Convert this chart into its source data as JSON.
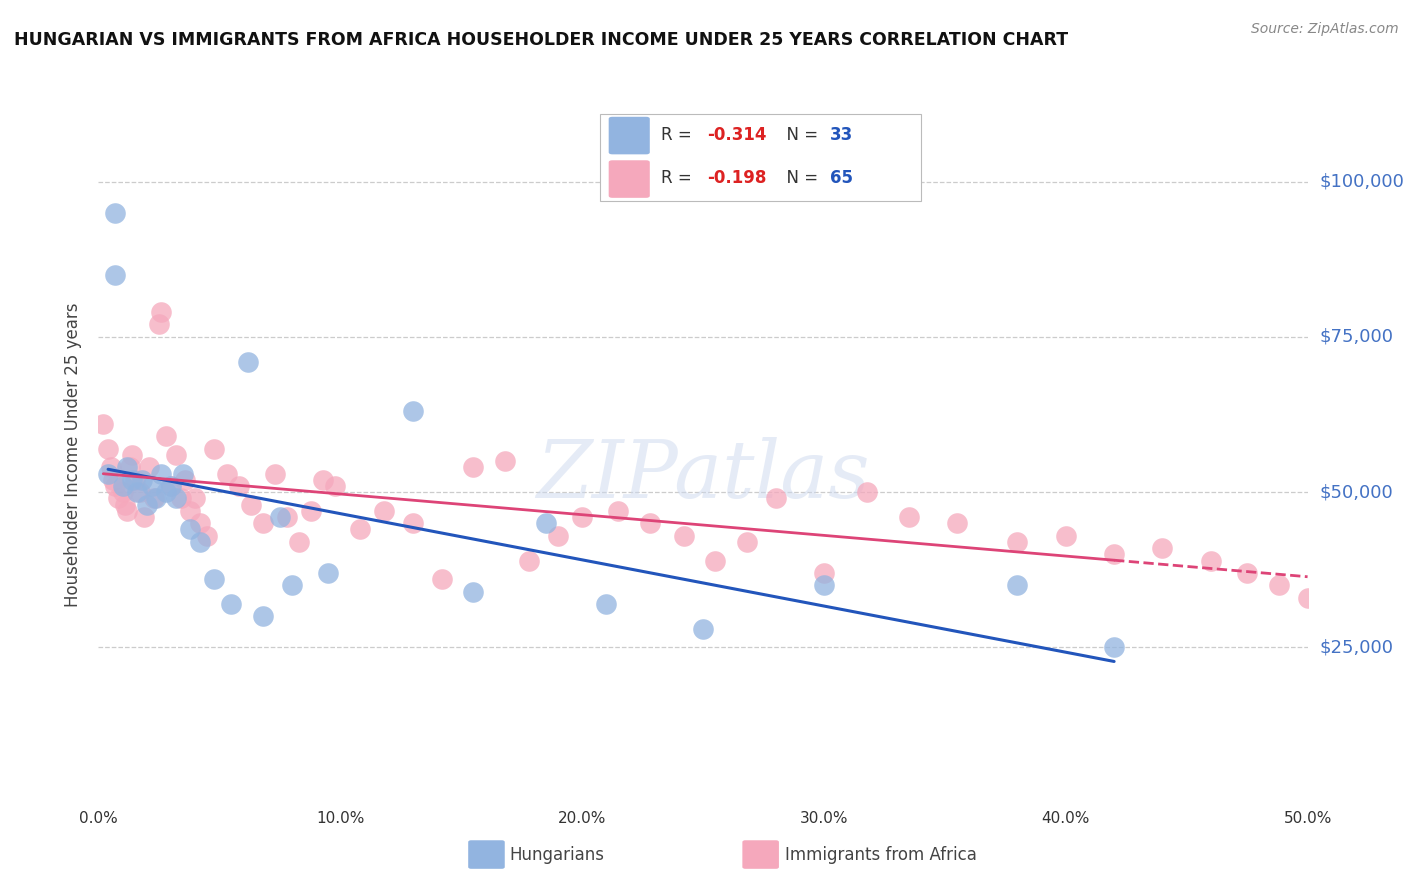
{
  "title": "HUNGARIAN VS IMMIGRANTS FROM AFRICA HOUSEHOLDER INCOME UNDER 25 YEARS CORRELATION CHART",
  "source": "Source: ZipAtlas.com",
  "ylabel": "Householder Income Under 25 years",
  "ytick_labels": [
    "$25,000",
    "$50,000",
    "$75,000",
    "$100,000"
  ],
  "ytick_values": [
    25000,
    50000,
    75000,
    100000
  ],
  "ylim": [
    0,
    112000
  ],
  "xlim": [
    0.0,
    0.5
  ],
  "xtick_vals": [
    0.0,
    0.1,
    0.2,
    0.3,
    0.4,
    0.5
  ],
  "xtick_labels": [
    "0.0%",
    "10.0%",
    "20.0%",
    "30.0%",
    "40.0%",
    "50.0%"
  ],
  "legend1_R": "-0.314",
  "legend1_N": "33",
  "legend2_R": "-0.198",
  "legend2_N": "65",
  "blue_color": "#92b4e0",
  "pink_color": "#f5a8bc",
  "blue_line_color": "#2255bb",
  "pink_line_color": "#dd4477",
  "watermark": "ZIPatlas",
  "blue_x": [
    0.004,
    0.007,
    0.007,
    0.01,
    0.012,
    0.014,
    0.016,
    0.018,
    0.02,
    0.022,
    0.024,
    0.026,
    0.028,
    0.03,
    0.032,
    0.035,
    0.038,
    0.042,
    0.048,
    0.055,
    0.062,
    0.068,
    0.075,
    0.08,
    0.095,
    0.13,
    0.155,
    0.185,
    0.21,
    0.25,
    0.3,
    0.38,
    0.42
  ],
  "blue_y": [
    53000,
    95000,
    85000,
    51000,
    54000,
    52000,
    50000,
    52000,
    48000,
    51000,
    49000,
    53000,
    50000,
    51000,
    49000,
    53000,
    44000,
    42000,
    36000,
    32000,
    71000,
    30000,
    46000,
    35000,
    37000,
    63000,
    34000,
    45000,
    32000,
    28000,
    35000,
    35000,
    25000
  ],
  "pink_x": [
    0.002,
    0.004,
    0.005,
    0.006,
    0.007,
    0.008,
    0.01,
    0.011,
    0.012,
    0.013,
    0.014,
    0.015,
    0.017,
    0.019,
    0.021,
    0.023,
    0.025,
    0.026,
    0.028,
    0.03,
    0.032,
    0.034,
    0.036,
    0.038,
    0.04,
    0.042,
    0.045,
    0.048,
    0.053,
    0.058,
    0.063,
    0.068,
    0.073,
    0.078,
    0.083,
    0.088,
    0.093,
    0.098,
    0.108,
    0.118,
    0.13,
    0.142,
    0.155,
    0.168,
    0.178,
    0.19,
    0.2,
    0.215,
    0.228,
    0.242,
    0.255,
    0.268,
    0.28,
    0.3,
    0.318,
    0.335,
    0.355,
    0.38,
    0.4,
    0.42,
    0.44,
    0.46,
    0.475,
    0.488,
    0.5
  ],
  "pink_y": [
    61000,
    57000,
    54000,
    52000,
    51000,
    49000,
    50000,
    48000,
    47000,
    54000,
    56000,
    52000,
    50000,
    46000,
    54000,
    49000,
    77000,
    79000,
    59000,
    51000,
    56000,
    49000,
    52000,
    47000,
    49000,
    45000,
    43000,
    57000,
    53000,
    51000,
    48000,
    45000,
    53000,
    46000,
    42000,
    47000,
    52000,
    51000,
    44000,
    47000,
    45000,
    36000,
    54000,
    55000,
    39000,
    43000,
    46000,
    47000,
    45000,
    43000,
    39000,
    42000,
    49000,
    37000,
    50000,
    46000,
    45000,
    42000,
    43000,
    40000,
    41000,
    39000,
    37000,
    35000,
    33000
  ]
}
